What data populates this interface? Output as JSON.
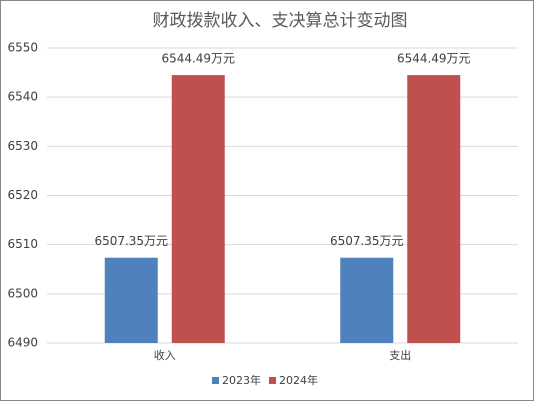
{
  "chart_data": {
    "type": "bar",
    "title": "财政拨款收入、支决算总计变动图",
    "categories": [
      "收入",
      "支出"
    ],
    "series": [
      {
        "name": "2023年",
        "color": "#4f81bd",
        "values": [
          6507.35,
          6507.35
        ],
        "value_labels": [
          "6507.35万元",
          "6507.35万元"
        ]
      },
      {
        "name": "2024年",
        "color": "#c0504d",
        "values": [
          6544.49,
          6544.49
        ],
        "value_labels": [
          "6544.49万元",
          "6544.49万元"
        ]
      }
    ],
    "ylim": [
      6490,
      6550
    ],
    "yticks": [
      6490,
      6500,
      6510,
      6520,
      6530,
      6540,
      6550
    ],
    "grid": true,
    "legend": "bottom"
  }
}
